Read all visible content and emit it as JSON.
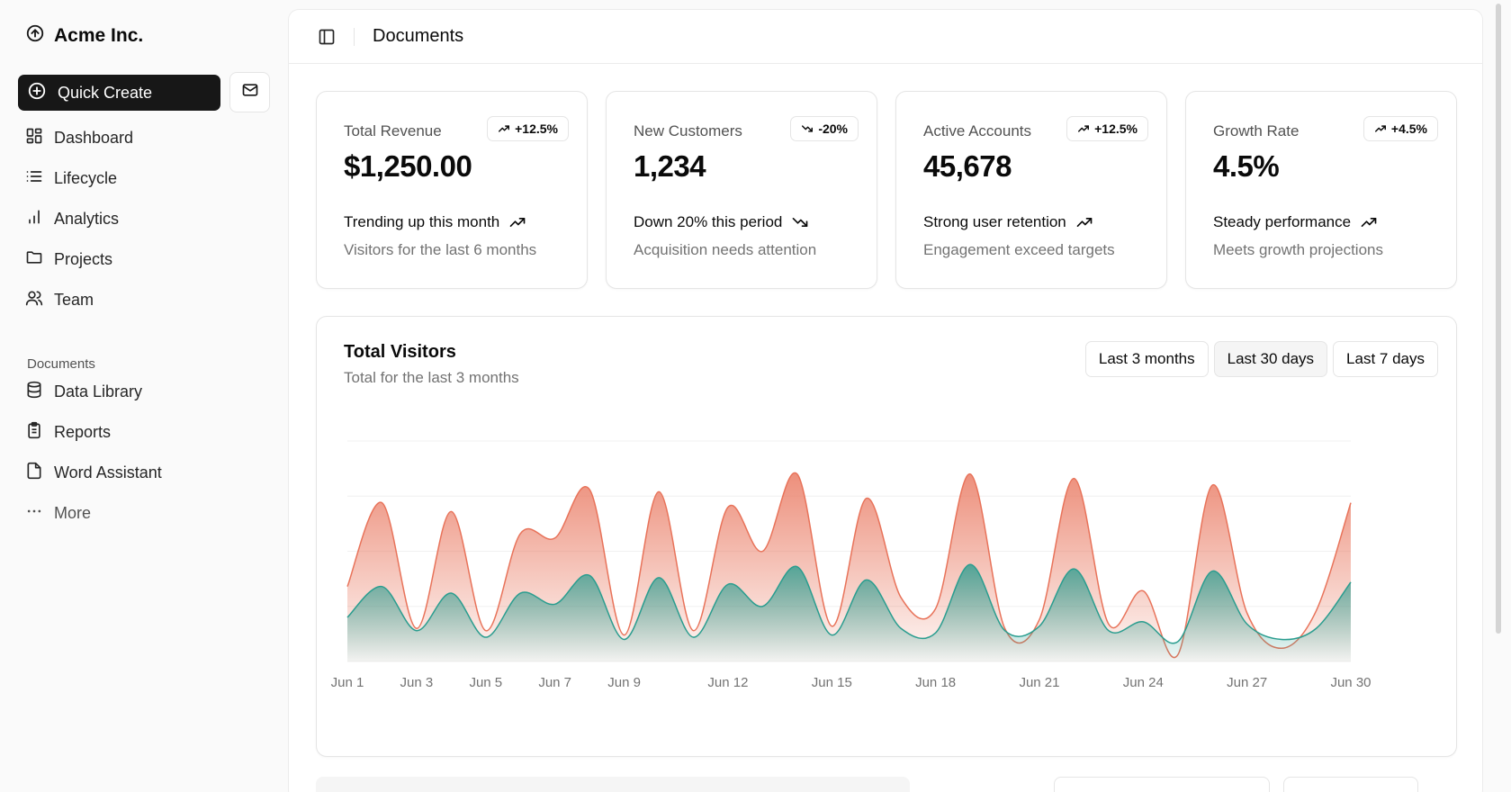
{
  "brand": {
    "name": "Acme Inc.",
    "icon": "circle-arrow-up-icon"
  },
  "sidebar": {
    "quick_create": "Quick Create",
    "main_items": [
      {
        "label": "Dashboard",
        "icon": "dashboard-icon"
      },
      {
        "label": "Lifecycle",
        "icon": "list-icon"
      },
      {
        "label": "Analytics",
        "icon": "bar-chart-icon"
      },
      {
        "label": "Projects",
        "icon": "folder-icon"
      },
      {
        "label": "Team",
        "icon": "users-icon"
      }
    ],
    "documents_label": "Documents",
    "doc_items": [
      {
        "label": "Data Library",
        "icon": "database-icon"
      },
      {
        "label": "Reports",
        "icon": "clipboard-icon"
      },
      {
        "label": "Word Assistant",
        "icon": "file-icon"
      },
      {
        "label": "More",
        "icon": "dots-icon"
      }
    ]
  },
  "header": {
    "title": "Documents"
  },
  "cards": [
    {
      "label": "Total Revenue",
      "badge": "+12.5%",
      "badge_dir": "up",
      "value": "$1,250.00",
      "trend": "Trending up this month",
      "trend_dir": "up",
      "desc": "Visitors for the last 6 months"
    },
    {
      "label": "New Customers",
      "badge": "-20%",
      "badge_dir": "down",
      "value": "1,234",
      "trend": "Down 20% this period",
      "trend_dir": "down",
      "desc": "Acquisition needs attention"
    },
    {
      "label": "Active Accounts",
      "badge": "+12.5%",
      "badge_dir": "up",
      "value": "45,678",
      "trend": "Strong user retention",
      "trend_dir": "up",
      "desc": "Engagement exceed targets"
    },
    {
      "label": "Growth Rate",
      "badge": "+4.5%",
      "badge_dir": "up",
      "value": "4.5%",
      "trend": "Steady performance",
      "trend_dir": "up",
      "desc": "Meets growth projections"
    }
  ],
  "chart_section": {
    "title": "Total Visitors",
    "subtitle": "Total for the last 3 months",
    "ranges": [
      "Last 3 months",
      "Last 30 days",
      "Last 7 days"
    ],
    "active_range": "Last 30 days"
  },
  "chart_data": {
    "type": "area",
    "x": [
      "Jun 1",
      "Jun 2",
      "Jun 3",
      "Jun 4",
      "Jun 5",
      "Jun 6",
      "Jun 7",
      "Jun 8",
      "Jun 9",
      "Jun 10",
      "Jun 11",
      "Jun 12",
      "Jun 13",
      "Jun 14",
      "Jun 15",
      "Jun 16",
      "Jun 17",
      "Jun 18",
      "Jun 19",
      "Jun 20",
      "Jun 21",
      "Jun 22",
      "Jun 23",
      "Jun 24",
      "Jun 25",
      "Jun 26",
      "Jun 27",
      "Jun 28",
      "Jun 29",
      "Jun 30"
    ],
    "tick_labels": [
      "Jun 1",
      "Jun 3",
      "Jun 5",
      "Jun 7",
      "Jun 9",
      "Jun 12",
      "Jun 15",
      "Jun 18",
      "Jun 21",
      "Jun 24",
      "Jun 27",
      "Jun 30"
    ],
    "series": [
      {
        "name": "",
        "color": "#e8735a",
        "values": [
          340,
          720,
          150,
          680,
          140,
          580,
          560,
          780,
          120,
          770,
          140,
          700,
          500,
          850,
          160,
          740,
          290,
          240,
          850,
          150,
          190,
          830,
          170,
          320,
          30,
          800,
          220,
          60,
          230,
          720
        ]
      },
      {
        "name": "",
        "color": "#2a9d8f",
        "values": [
          200,
          340,
          140,
          310,
          110,
          310,
          260,
          390,
          100,
          380,
          110,
          350,
          250,
          430,
          120,
          370,
          150,
          130,
          440,
          140,
          160,
          420,
          140,
          180,
          90,
          410,
          170,
          100,
          150,
          360
        ]
      }
    ],
    "ylim": [
      0,
      1000
    ],
    "grid": true
  },
  "colors": {
    "primary": "#171717",
    "accent_desktop": "#e8735a",
    "accent_mobile": "#2a9d8f"
  }
}
